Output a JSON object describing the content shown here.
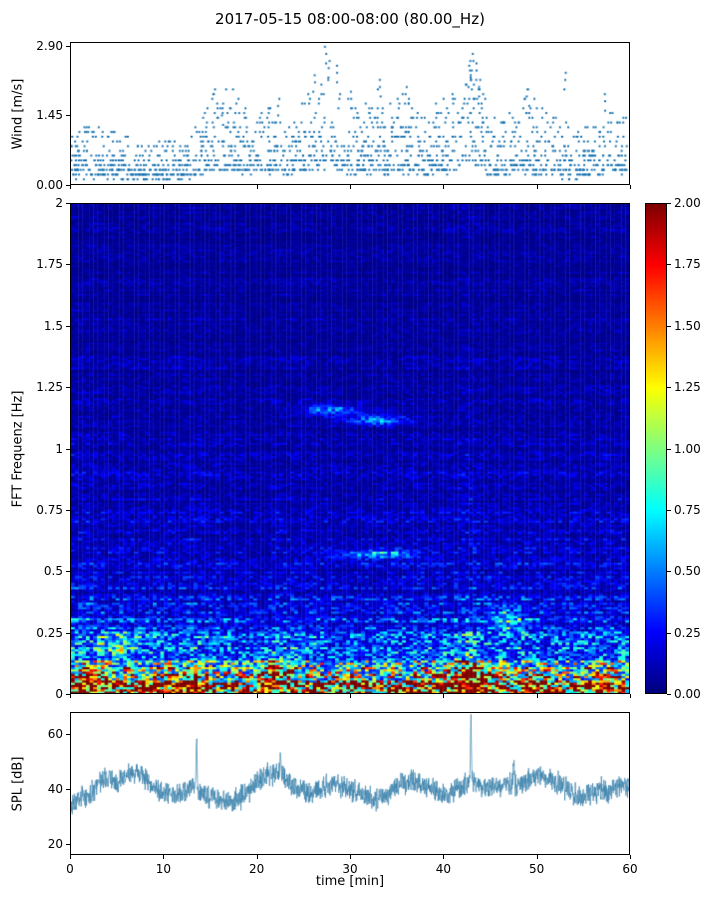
{
  "title": "2017-05-15 08:00-08:00 (80.00_Hz)",
  "colors": {
    "scatter": "#1f77b4",
    "line": "#3d84ad",
    "axis": "#000000",
    "background": "#ffffff"
  },
  "chart_data": [
    {
      "type": "scatter",
      "name": "wind",
      "ylabel": "Wind [m/s]",
      "xlim": [
        0,
        60
      ],
      "ylim": [
        0,
        2.98
      ],
      "yticks": {
        "values": [
          0.0,
          1.45,
          2.9
        ],
        "labels": [
          "0.00",
          "1.45",
          "2.90"
        ]
      },
      "xtick_values": [
        0,
        10,
        20,
        30,
        40,
        50,
        60
      ],
      "marker": "point",
      "seed": 7,
      "n_points": 1600,
      "quantize_step": 0.1,
      "envelope_per_min": [
        0.55,
        0.65,
        0.7,
        0.7,
        0.6,
        0.65,
        0.55,
        0.5,
        0.45,
        0.5,
        0.55,
        0.5,
        0.45,
        0.55,
        0.85,
        1.05,
        1.15,
        1.1,
        1.0,
        0.9,
        0.8,
        0.95,
        1.0,
        0.9,
        0.8,
        1.0,
        1.15,
        1.35,
        1.25,
        1.15,
        1.0,
        0.9,
        1.0,
        1.1,
        0.9,
        1.0,
        1.1,
        0.9,
        0.8,
        0.9,
        1.0,
        1.1,
        1.4,
        1.5,
        1.15,
        0.9,
        0.8,
        0.9,
        1.0,
        1.1,
        1.0,
        0.9,
        0.8,
        0.65,
        0.7,
        0.6,
        0.7,
        0.8,
        0.9,
        1.0,
        0.9
      ],
      "peaks": [
        [
          27.3,
          2.9
        ],
        [
          28.6,
          2.5
        ],
        [
          26.2,
          2.3
        ],
        [
          27.8,
          2.6
        ],
        [
          33.2,
          2.2
        ],
        [
          36.1,
          2.05
        ],
        [
          43.2,
          2.75
        ],
        [
          43.6,
          2.55
        ],
        [
          42.9,
          2.4
        ],
        [
          49.1,
          2.0
        ],
        [
          53.2,
          2.35
        ],
        [
          57.4,
          1.9
        ],
        [
          30.1,
          1.95
        ],
        [
          22.4,
          1.8
        ],
        [
          16.3,
          1.6
        ],
        [
          44.0,
          2.2
        ]
      ]
    },
    {
      "type": "heatmap",
      "name": "spectrogram",
      "ylabel": "FFT Frequenz [Hz]",
      "xlim": [
        0,
        60
      ],
      "ylim": [
        0,
        2
      ],
      "yticks": {
        "values": [
          0,
          0.25,
          0.5,
          0.75,
          1,
          1.25,
          1.5,
          1.75,
          2
        ],
        "labels": [
          "0",
          "0.25",
          "0.5",
          "0.75",
          "1",
          "1.25",
          "1.5",
          "1.75",
          "2"
        ]
      },
      "xtick_values": [
        0,
        10,
        20,
        30,
        40,
        50,
        60
      ],
      "colormap": "jet",
      "clim": [
        0,
        2
      ],
      "colorbar": {
        "ticks": {
          "values": [
            0,
            0.25,
            0.5,
            0.75,
            1,
            1.25,
            1.5,
            1.75,
            2
          ],
          "labels": [
            "0.00",
            "0.25",
            "0.50",
            "0.75",
            "1.00",
            "1.25",
            "1.50",
            "1.75",
            "2.00"
          ]
        }
      },
      "params": {
        "seed": 11,
        "cols": 150,
        "rows": 220,
        "amp1": 1.85,
        "decay1": 0.09,
        "amp2": 0.3,
        "decay2": 0.5,
        "floor": 0.06,
        "col_mod": [
          1.15,
          1.15,
          1.1,
          1.05,
          1.0,
          1.0,
          1.0,
          1.0,
          1.0,
          1.0,
          1.0,
          1.0,
          1.05,
          1.1,
          1.0,
          1.0,
          1.0,
          1.0,
          0.95,
          0.85,
          0.8,
          0.85,
          1.05,
          1.0,
          1.0,
          1.0,
          1.0,
          1.0,
          0.95,
          0.9,
          0.9,
          0.9,
          0.92,
          0.95,
          1.0,
          1.0,
          1.0,
          1.0,
          1.0,
          1.0,
          1.0,
          1.05,
          1.2,
          1.25,
          1.1,
          1.0,
          1.0,
          1.0,
          1.0,
          1.05,
          1.0,
          1.0,
          0.95,
          0.95,
          1.0,
          1.0,
          1.0,
          1.05,
          1.0,
          1.05,
          1.0
        ],
        "hotspots": [
          [
            2,
            0.04,
            2.5,
            0.05,
            0.9
          ],
          [
            8,
            0.03,
            2,
            0.04,
            0.7
          ],
          [
            13,
            0.04,
            1.5,
            0.05,
            1.1
          ],
          [
            22,
            0.07,
            2,
            0.07,
            0.8
          ],
          [
            30,
            0.05,
            1.5,
            0.04,
            0.6
          ],
          [
            43,
            0.05,
            2.5,
            0.07,
            1.3
          ],
          [
            50,
            0.04,
            1.5,
            0.05,
            0.8
          ],
          [
            57,
            0.04,
            1.5,
            0.04,
            0.7
          ],
          [
            33,
            0.57,
            4,
            0.015,
            0.55
          ],
          [
            28,
            1.16,
            3,
            0.02,
            0.45
          ],
          [
            33,
            1.12,
            3,
            0.02,
            0.45
          ],
          [
            47,
            0.3,
            1.5,
            0.05,
            0.5
          ],
          [
            5,
            0.2,
            2,
            0.05,
            0.5
          ]
        ]
      }
    },
    {
      "type": "line",
      "name": "spl",
      "ylabel": "SPL [dB]",
      "xlabel": "time [min]",
      "xlim": [
        0,
        60
      ],
      "ylim": [
        16,
        68
      ],
      "yticks": {
        "values": [
          20,
          40,
          60
        ],
        "labels": [
          "20",
          "40",
          "60"
        ]
      },
      "xticks": {
        "values": [
          0,
          10,
          20,
          30,
          40,
          50,
          60
        ],
        "labels": [
          "0",
          "10",
          "20",
          "30",
          "40",
          "50",
          "60"
        ]
      },
      "seed": 3,
      "jitter": 5,
      "samples": 2200,
      "mean_per_min": [
        34,
        36,
        38,
        42,
        44,
        43,
        45,
        46,
        44,
        40,
        38,
        39,
        38,
        41,
        39,
        37,
        36,
        35,
        36,
        39,
        43,
        45,
        46,
        44,
        41,
        39,
        38,
        40,
        42,
        41,
        40,
        39,
        37,
        36,
        38,
        41,
        42,
        43,
        41,
        40,
        38,
        39,
        41,
        44,
        42,
        40,
        41,
        42,
        41,
        43,
        45,
        44,
        43,
        41,
        38,
        37,
        38,
        40,
        39,
        42,
        41
      ],
      "peaks": [
        [
          43.0,
          67
        ],
        [
          13.5,
          57
        ],
        [
          22.5,
          53
        ],
        [
          47.6,
          52
        ]
      ]
    }
  ]
}
